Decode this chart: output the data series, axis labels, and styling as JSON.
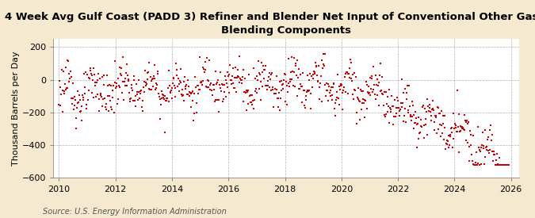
{
  "title_line1": "4 Week Avg Gulf Coast (PADD 3) Refiner and Blender Net Input of Conventional Other Gasoline",
  "title_line2": "Blending Components",
  "ylabel": "Thousand Barrels per Day",
  "source": "Source: U.S. Energy Information Administration",
  "ylim": [
    -600,
    250
  ],
  "yticks": [
    -600,
    -400,
    -200,
    0,
    200
  ],
  "xlim_start": 2009.8,
  "xlim_end": 2026.3,
  "xticks": [
    2010,
    2012,
    2014,
    2016,
    2018,
    2020,
    2022,
    2024,
    2026
  ],
  "dot_color": "#cc0000",
  "dot_size": 4,
  "bg_color": "#f5ead0",
  "plot_bg_color": "#ffffff",
  "grid_color": "#b0b0b0",
  "title_fontsize": 9.5,
  "axis_fontsize": 8,
  "source_fontsize": 7,
  "ylabel_fontsize": 8
}
